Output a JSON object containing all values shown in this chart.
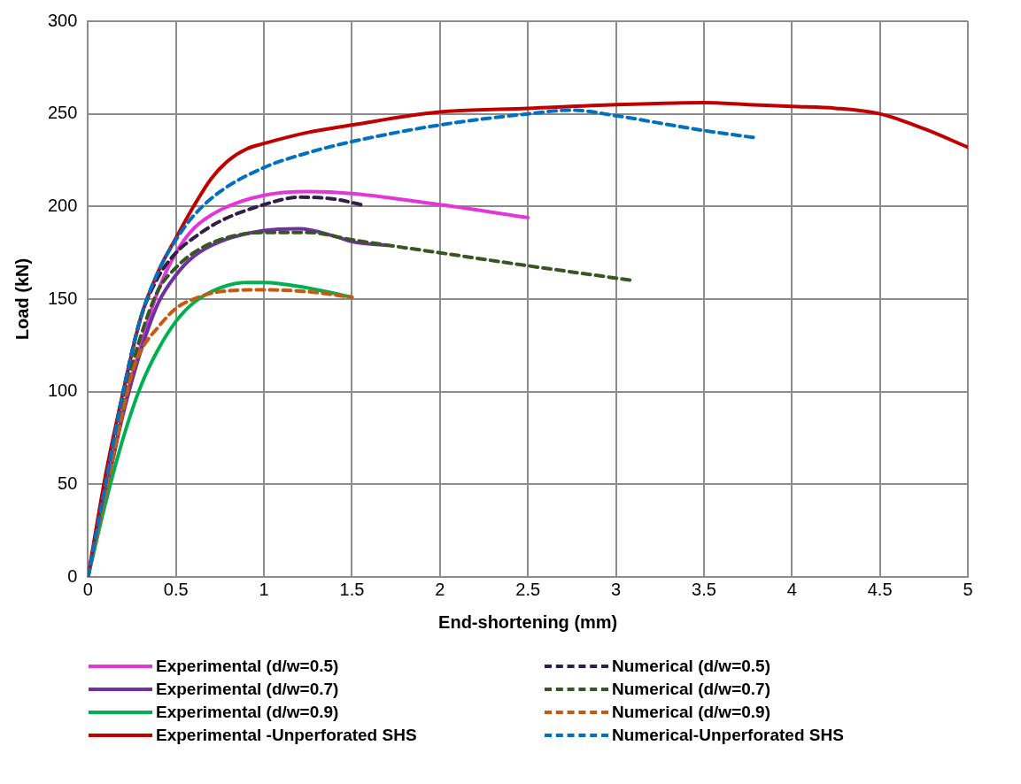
{
  "chart_data": {
    "type": "line",
    "xlabel": "End-shortening (mm)",
    "ylabel": "Load (kN)",
    "xlim": [
      0,
      5
    ],
    "ylim": [
      0,
      300
    ],
    "xticks": [
      0,
      0.5,
      1,
      1.5,
      2,
      2.5,
      3,
      3.5,
      4,
      4.5,
      5
    ],
    "yticks": [
      0,
      50,
      100,
      150,
      200,
      250,
      300
    ],
    "grid": true,
    "legend": "bottom",
    "marker": "none",
    "series": [
      {
        "name": "Experimental (d/w=0.5)",
        "color": "#e236d8",
        "line_style": "solid",
        "x": [
          0,
          0.1,
          0.2,
          0.3,
          0.4,
          0.5,
          0.6,
          0.75,
          1,
          1.25,
          1.5,
          2,
          2.5
        ],
        "values": [
          0,
          45,
          90,
          125,
          155,
          175,
          188,
          198,
          206,
          208,
          207,
          201,
          194
        ]
      },
      {
        "name": "Numerical (d/w=0.5)",
        "color": "#2e1f47",
        "line_style": "dashed",
        "x": [
          0,
          0.1,
          0.2,
          0.3,
          0.4,
          0.5,
          0.6,
          0.75,
          1,
          1.2,
          1.4,
          1.55
        ],
        "values": [
          0,
          50,
          100,
          140,
          162,
          175,
          183,
          192,
          201,
          205,
          204,
          201
        ]
      },
      {
        "name": "Experimental (d/w=0.7)",
        "color": "#7030a0",
        "line_style": "solid",
        "x": [
          0,
          0.1,
          0.2,
          0.3,
          0.4,
          0.5,
          0.6,
          0.75,
          1,
          1.2,
          1.4,
          1.5,
          1.7
        ],
        "values": [
          0,
          45,
          88,
          122,
          148,
          163,
          173,
          181,
          187,
          188,
          184,
          181,
          179
        ]
      },
      {
        "name": "Numerical (d/w=0.7)",
        "color": "#375623",
        "line_style": "dashed",
        "x": [
          0,
          0.1,
          0.2,
          0.3,
          0.4,
          0.5,
          0.6,
          0.75,
          1,
          1.25,
          1.5,
          2,
          2.5,
          3.1
        ],
        "values": [
          0,
          48,
          95,
          130,
          155,
          167,
          175,
          182,
          186,
          186,
          182,
          175,
          168,
          160
        ]
      },
      {
        "name": "Experimental (d/w=0.9)",
        "color": "#00b050",
        "line_style": "solid",
        "x": [
          0,
          0.1,
          0.2,
          0.3,
          0.4,
          0.5,
          0.6,
          0.75,
          0.9,
          1,
          1.25,
          1.5
        ],
        "values": [
          0,
          40,
          75,
          103,
          123,
          138,
          148,
          156,
          159,
          159,
          156,
          151
        ]
      },
      {
        "name": "Numerical (d/w=0.9)",
        "color": "#c55a11",
        "line_style": "dashed",
        "x": [
          0,
          0.1,
          0.2,
          0.25,
          0.3,
          0.4,
          0.5,
          0.6,
          0.75,
          1,
          1.25,
          1.5
        ],
        "values": [
          0,
          45,
          90,
          110,
          122,
          135,
          145,
          150,
          154,
          155,
          154,
          151
        ]
      },
      {
        "name": "Experimental -Unperforated SHS",
        "color": "#c00000",
        "line_style": "solid",
        "x": [
          0,
          0.1,
          0.2,
          0.3,
          0.4,
          0.5,
          0.6,
          0.7,
          0.8,
          0.9,
          1,
          1.25,
          1.5,
          2,
          2.5,
          3,
          3.5,
          3.75,
          4,
          4.25,
          4.5,
          4.75,
          5
        ],
        "values": [
          0,
          55,
          100,
          140,
          165,
          183,
          200,
          215,
          225,
          231,
          234,
          240,
          244,
          251,
          253,
          255,
          256,
          255,
          254,
          253,
          250,
          242,
          232
        ]
      },
      {
        "name": "Numerical-Unperforated SHS",
        "color": "#0070c0",
        "line_style": "dashed",
        "x": [
          0,
          0.1,
          0.2,
          0.3,
          0.4,
          0.5,
          0.6,
          0.75,
          1,
          1.25,
          1.5,
          2,
          2.5,
          2.75,
          3,
          3.25,
          3.5,
          3.8
        ],
        "values": [
          0,
          50,
          100,
          140,
          165,
          182,
          195,
          208,
          221,
          229,
          235,
          244,
          250,
          252,
          249,
          245,
          241,
          237
        ]
      }
    ]
  }
}
